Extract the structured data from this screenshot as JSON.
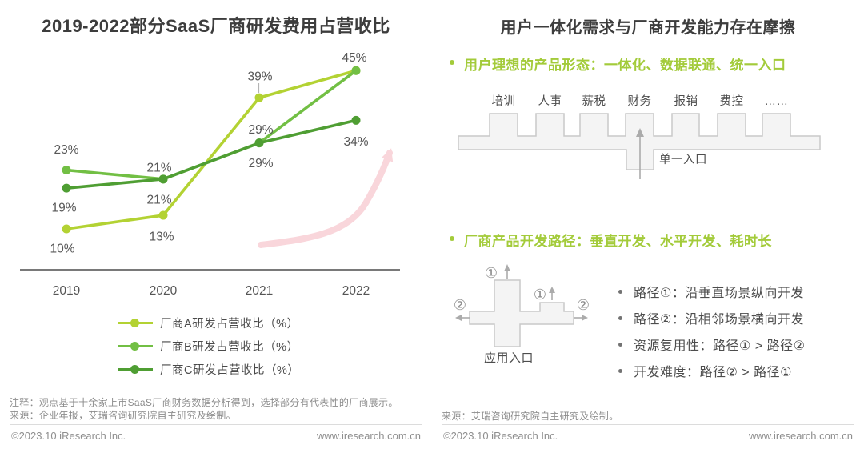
{
  "chart_data": {
    "type": "line",
    "title": "2019-2022部分SaaS厂商研发费用占营收比",
    "categories": [
      "2019",
      "2020",
      "2021",
      "2022"
    ],
    "series": [
      {
        "name": "厂商A研发占营收比（%）",
        "values": [
          10,
          13,
          39,
          45
        ],
        "color": "#b3d233"
      },
      {
        "name": "厂商B研发占营收比（%）",
        "values": [
          23,
          21,
          29,
          45
        ],
        "color": "#72bf44"
      },
      {
        "name": "厂商C研发占营收比（%）",
        "values": [
          19,
          21,
          29,
          34
        ],
        "color": "#4f9e33"
      }
    ],
    "data_label_format": "{value}%",
    "xlabel": "",
    "ylabel": "",
    "ylim": [
      0,
      50
    ],
    "grid": false,
    "legend_position": "bottom",
    "annotations": [
      "light-pink upward trend arrow in background"
    ]
  },
  "left": {
    "note": "注释：观点基于十余家上市SaaS厂商财务数据分析得到，选择部分有代表性的厂商展示。",
    "source": "来源：企业年报，艾瑞咨询研究院自主研究及绘制。",
    "footer_left": "©2023.10 iResearch Inc.",
    "footer_right": "www.iresearch.com.cn"
  },
  "right": {
    "title": "用户一体化需求与厂商开发能力存在摩擦",
    "bullet1": "用户理想的产品形态：一体化、数据联通、统一入口",
    "comb": {
      "columns": [
        "培训",
        "人事",
        "薪税",
        "财务",
        "报销",
        "费控",
        "……"
      ],
      "entry_label": "单一入口"
    },
    "bullet2": "厂商产品开发路径：垂直开发、水平开发、耗时长",
    "path_diagram": {
      "label": "应用入口",
      "path1_symbol": "①",
      "path2_symbol": "②"
    },
    "path_notes": [
      "路径①：沿垂直场景纵向开发",
      "路径②：沿相邻场景横向开发",
      "资源复用性：路径① > 路径②",
      "开发难度：路径② > 路径①"
    ],
    "source": "来源：艾瑞咨询研究院自主研究及绘制。",
    "footer_left": "©2023.10 iResearch Inc.",
    "footer_right": "www.iresearch.com.cn"
  },
  "colors": {
    "title_text": "#3d3d3d",
    "accent_green": "#a3cb3a",
    "pink_arrow": "#f9d6db",
    "diagram_fill": "#f4f4f4",
    "diagram_stroke": "#c9c9c9",
    "body_text": "#4d4d4d",
    "muted_text": "#8c8c8c"
  }
}
